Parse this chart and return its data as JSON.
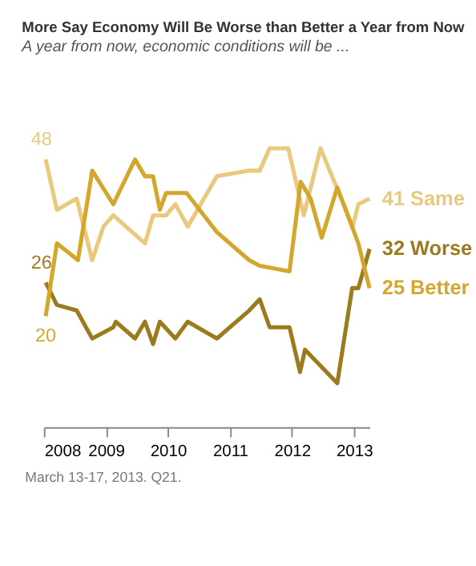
{
  "chart_data": {
    "type": "line",
    "title": "More Say Economy Will Be Worse than Better a Year from Now",
    "subtitle": "A year from now, economic conditions will be ...",
    "annotations": [
      "March 13-17, 2013. Q21."
    ],
    "xlim": [
      2008,
      2013.25
    ],
    "xticks": [
      2008,
      2009,
      2010,
      2011,
      2012,
      2013
    ],
    "tick_labels": "x",
    "series": [
      {
        "name": "Same",
        "color": "#e8c97e",
        "x": [
          2008.03,
          2008.21,
          2008.53,
          2008.78,
          2008.96,
          2009.12,
          2009.63,
          2009.76,
          2009.97,
          2010.12,
          2010.32,
          2010.79,
          2011.31,
          2011.48,
          2011.64,
          2011.94,
          2012.19,
          2012.46,
          2012.98,
          2013.07,
          2013.25
        ],
        "values": [
          48,
          39,
          41,
          30,
          36,
          38,
          33,
          38,
          38,
          40,
          36,
          45,
          46,
          46,
          50,
          50,
          38,
          50,
          36,
          40,
          41
        ],
        "value_labels": [
          "48",
          null,
          null,
          null,
          null,
          null,
          null,
          null,
          null,
          null,
          null,
          null,
          null,
          null,
          null,
          null,
          null,
          null,
          null,
          null,
          "41"
        ]
      },
      {
        "name": "Worse",
        "color": "#9c7a1e",
        "x": [
          2008.03,
          2008.21,
          2008.53,
          2008.78,
          2009.12,
          2009.16,
          2009.47,
          2009.63,
          2009.76,
          2009.87,
          2010.12,
          2010.32,
          2010.79,
          2011.31,
          2011.48,
          2011.64,
          2011.96,
          2012.13,
          2012.21,
          2012.73,
          2012.97,
          2013.07,
          2013.25
        ],
        "values": [
          26,
          22,
          21,
          16,
          18,
          19,
          16,
          19,
          15,
          19,
          16,
          19,
          16,
          21,
          23,
          18,
          18,
          10,
          14,
          8,
          25,
          25,
          32
        ],
        "value_labels": [
          "26",
          null,
          null,
          null,
          null,
          null,
          null,
          null,
          null,
          null,
          null,
          null,
          null,
          null,
          null,
          null,
          null,
          null,
          null,
          null,
          null,
          null,
          "32"
        ]
      },
      {
        "name": "Better",
        "color": "#d4a72c",
        "x": [
          2008.03,
          2008.21,
          2008.55,
          2008.78,
          2009.12,
          2009.47,
          2009.63,
          2009.76,
          2009.87,
          2009.97,
          2010.3,
          2010.79,
          2011.31,
          2011.48,
          2011.96,
          2012.14,
          2012.3,
          2012.48,
          2012.73,
          2013.07,
          2013.25
        ],
        "values": [
          20,
          33,
          30,
          46,
          40,
          48,
          45,
          45,
          39,
          42,
          42,
          35,
          30,
          29,
          28,
          44,
          41,
          34,
          43,
          33,
          25
        ],
        "value_labels": [
          "20",
          null,
          null,
          null,
          null,
          null,
          null,
          null,
          null,
          null,
          null,
          null,
          null,
          null,
          null,
          null,
          null,
          null,
          null,
          null,
          "25"
        ]
      }
    ]
  }
}
